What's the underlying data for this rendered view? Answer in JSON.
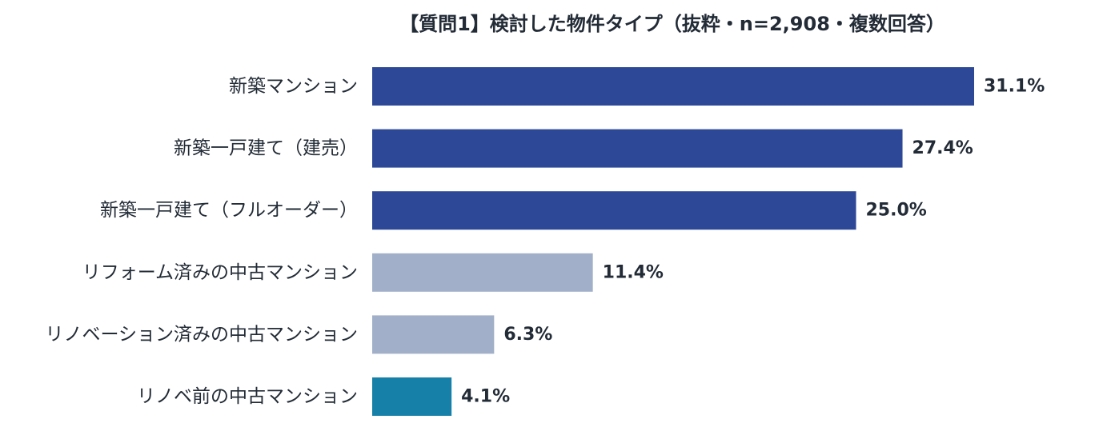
{
  "chart_data": {
    "type": "bar",
    "orientation": "horizontal",
    "title": "【質問1】検討した物件タイプ（抜粋・n=2,908・複数回答）",
    "categories": [
      "新築マンション",
      "新築一戸建て（建売）",
      "新築一戸建て（フルオーダー）",
      "リフォーム済みの中古マンション",
      "リノベーション済みの中古マンション",
      "リノベ前の中古マンション"
    ],
    "values": [
      31.1,
      27.4,
      25.0,
      11.4,
      6.3,
      4.1
    ],
    "value_labels": [
      "31.1%",
      "27.4%",
      "25.0%",
      "11.4%",
      "6.3%",
      "4.1%"
    ],
    "unit": "%",
    "xlim": [
      0,
      31.1
    ],
    "grid": false,
    "legend": "none",
    "colors": [
      "#2c4896",
      "#2c4896",
      "#2c4896",
      "#a1b0c8",
      "#a1b0c8",
      "#1680a8"
    ]
  }
}
